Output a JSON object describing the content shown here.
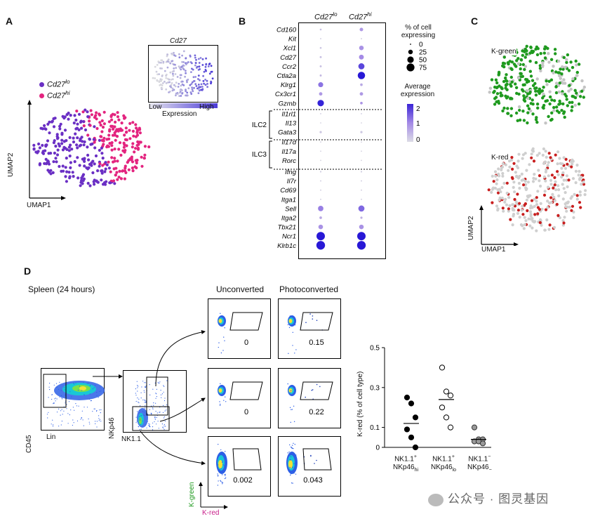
{
  "panels": {
    "a": "A",
    "b": "B",
    "c": "C",
    "d": "D"
  },
  "colors": {
    "cd27lo": "#6a2fc4",
    "cd27hi": "#e3247f",
    "kgreen": "#1f9a1f",
    "kred": "#c81e1e",
    "grey": "#c4c4c4"
  },
  "panel_a": {
    "legend_lo": "Cd27",
    "legend_lo_sup": "lo",
    "legend_hi": "Cd27",
    "legend_hi_sup": "hi",
    "inset_title": "Cd27",
    "inset_low": "Low",
    "inset_high": "High",
    "inset_expression": "Expression",
    "xlabel": "UMAP1",
    "ylabel": "UMAP2"
  },
  "panel_b": {
    "col_lo": "Cd27",
    "col_lo_sup": "lo",
    "col_hi": "Cd27",
    "col_hi_sup": "hi",
    "group_ilc2": "ILC2",
    "group_ilc3": "ILC3",
    "size_legend_title": "% of cell expressing",
    "size_legend": [
      "0",
      "25",
      "50",
      "75"
    ],
    "color_legend_title": "Average expression",
    "color_ticks": [
      "2",
      "1",
      "0"
    ]
  },
  "chart_data": [
    {
      "type": "dotplot",
      "title": "",
      "columns": [
        "Cd27lo",
        "Cd27hi"
      ],
      "genes": [
        "Cd160",
        "Kit",
        "Xcl1",
        "Cd27",
        "Ccr2",
        "Ctla2a",
        "Klrg1",
        "Cx3cr1",
        "Gzmb",
        "Il1rl1",
        "Il13",
        "Gata3",
        "Il17d",
        "Il17a",
        "Rorc",
        "Ifng",
        "Il7r",
        "Cd69",
        "Itga1",
        "Sell",
        "Itga2",
        "Tbx21",
        "Ncr1",
        "Klrb1c"
      ],
      "pct_lo": [
        4,
        2,
        4,
        5,
        5,
        5,
        30,
        14,
        50,
        2,
        1,
        6,
        1,
        1,
        1,
        3,
        2,
        2,
        2,
        35,
        8,
        25,
        85,
        90
      ],
      "pct_hi": [
        15,
        2,
        25,
        28,
        45,
        65,
        8,
        14,
        8,
        2,
        1,
        6,
        1,
        1,
        1,
        3,
        2,
        2,
        2,
        45,
        6,
        25,
        85,
        90
      ],
      "avg_lo": [
        0.3,
        0.1,
        0.2,
        0.3,
        0.3,
        0.4,
        1.2,
        0.8,
        1.9,
        0.1,
        0.05,
        0.2,
        0.05,
        0.05,
        0.05,
        0.1,
        0.1,
        0.1,
        0.1,
        1.1,
        0.6,
        0.9,
        2.2,
        2.3
      ],
      "avg_hi": [
        0.8,
        0.1,
        0.9,
        1.0,
        1.6,
        2.2,
        0.6,
        0.8,
        0.9,
        0.1,
        0.05,
        0.2,
        0.05,
        0.05,
        0.05,
        0.1,
        0.1,
        0.1,
        0.1,
        1.3,
        0.5,
        0.9,
        2.3,
        2.3
      ],
      "size_legend": [
        0,
        25,
        50,
        75
      ],
      "color_range": [
        0,
        2
      ]
    },
    {
      "type": "scatter",
      "title": "",
      "xlabel": "",
      "ylabel": "K-red (% of cell type)",
      "ylim": [
        0,
        0.5
      ],
      "yticks": [
        0,
        0.1,
        0.3,
        0.5
      ],
      "categories": [
        "NK1.1+ NKp46hi",
        "NK1.1+ NKp46lo",
        "NK1.1− NKp46−"
      ],
      "values": [
        [
          0.25,
          0.22,
          0.15,
          0.09,
          0.05,
          0.0
        ],
        [
          0.4,
          0.28,
          0.26,
          0.2,
          0.15,
          0.1
        ],
        [
          0.1,
          0.04,
          0.04,
          0.03,
          0.03,
          0.02
        ]
      ],
      "means": [
        0.12,
        0.24,
        0.04
      ]
    }
  ],
  "panel_c": {
    "top_title": "K-green",
    "bottom_title": "K-red",
    "xlabel": "UMAP1",
    "ylabel": "UMAP2"
  },
  "panel_d": {
    "title": "Spleen (24 hours)",
    "col_unconverted": "Unconverted",
    "col_photoconverted": "Photoconverted",
    "plot1_x": "Lin",
    "plot1_y": "CD45",
    "plot2_x": "NK1.1",
    "plot2_y": "NKp46",
    "gate_values": [
      [
        "0",
        "0.15"
      ],
      [
        "0",
        "0.22"
      ],
      [
        "0.002",
        "0.043"
      ]
    ],
    "axis_x": "K-red",
    "axis_y": "K-green",
    "cat1_a": "NK1.1",
    "cat1_a_sup": "+",
    "cat1_b": "NKp46",
    "cat1_b_sub": "hi",
    "cat2_a": "NK1.1",
    "cat2_a_sup": "+",
    "cat2_b": "NKp46",
    "cat2_b_sub": "lo",
    "cat3_a": "NK1.1",
    "cat3_a_sup": "−",
    "cat3_b": "NKp46",
    "cat3_b_sub": "−",
    "yticks": [
      "0.5",
      "0.3",
      "0.1",
      "0"
    ]
  },
  "watermark": "公众号 · 图灵基因"
}
